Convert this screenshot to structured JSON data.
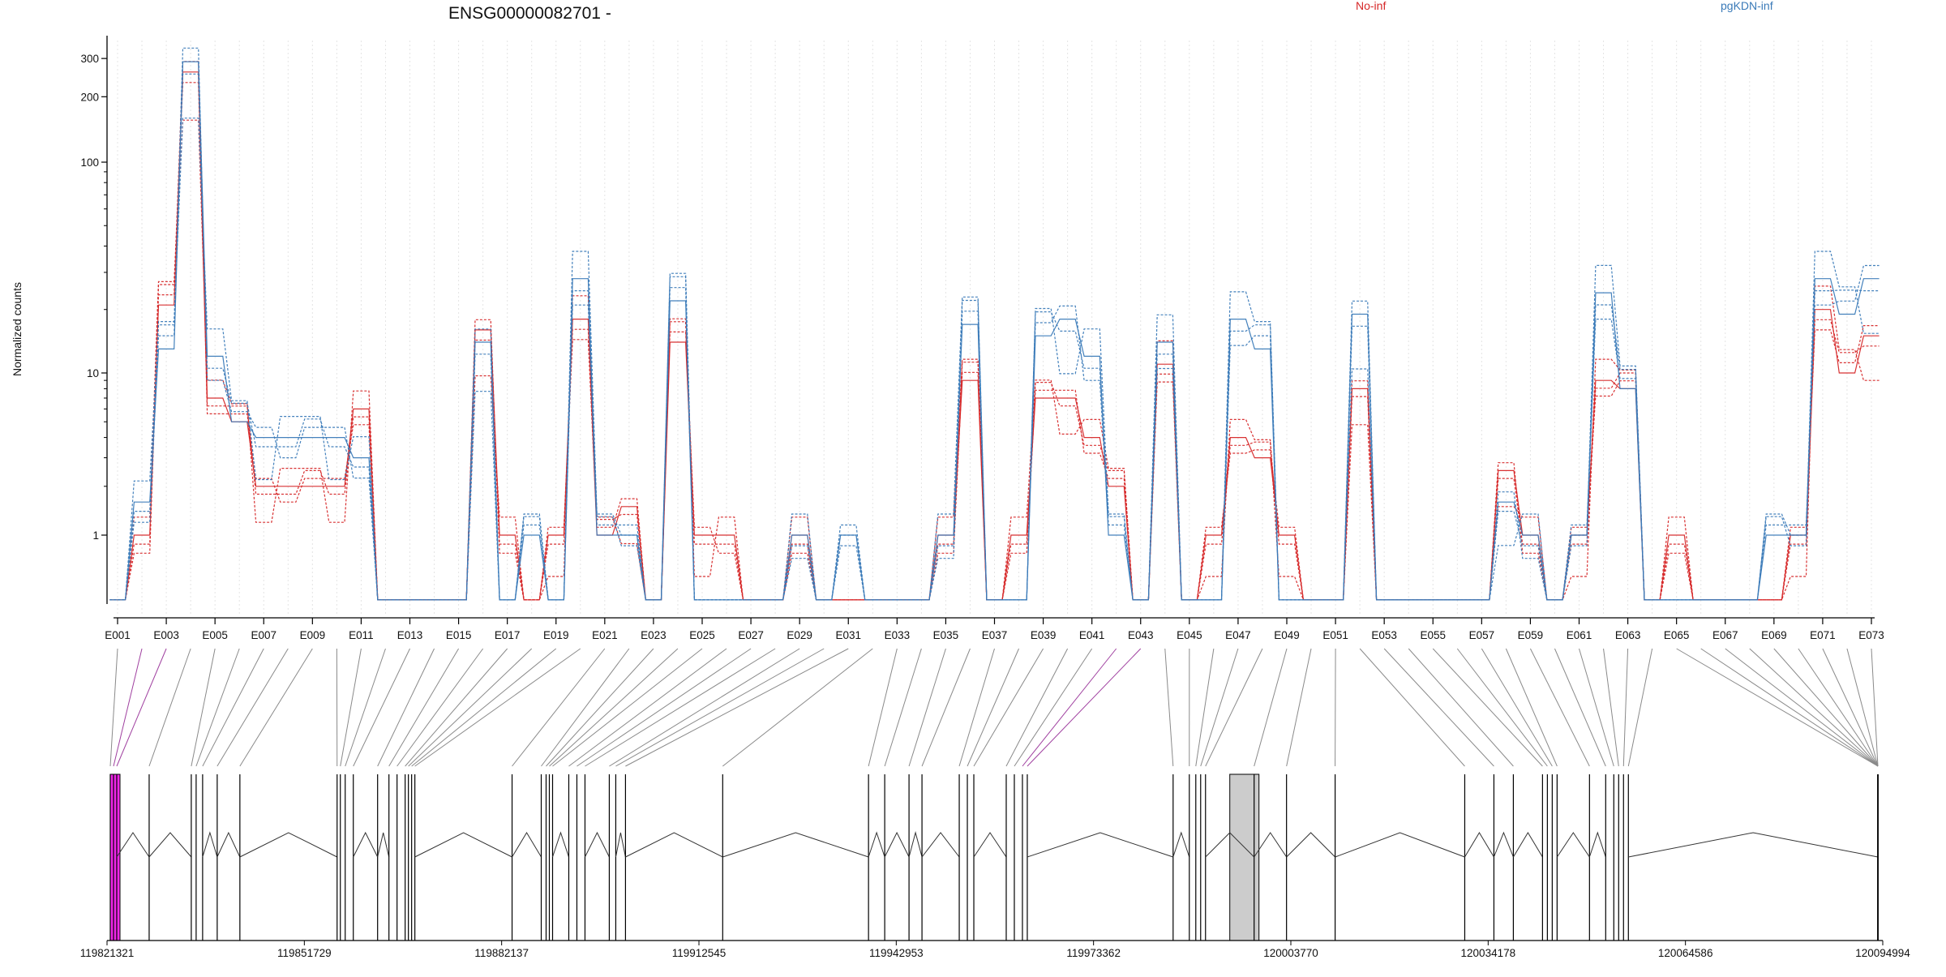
{
  "page": {
    "title": "ENSG00000082701 -",
    "legend": [
      {
        "label": "No-inf",
        "color": "#d62728"
      },
      {
        "label": "pgKDN-inf",
        "color": "#3a7ab8"
      }
    ]
  },
  "chart_data": {
    "type": "line",
    "title": "ENSG00000082701 -",
    "ylabel": "Normalized counts",
    "xlabel": "",
    "y_scale": "log",
    "yticks": [
      1,
      10,
      100,
      200,
      300
    ],
    "ylim": [
      0.45,
      340
    ],
    "grid": "vertical-dashed",
    "legend_placement": "top",
    "exon_labels": [
      "E001",
      "E003",
      "E005",
      "E007",
      "E009",
      "E011",
      "E013",
      "E015",
      "E017",
      "E019",
      "E021",
      "E023",
      "E025",
      "E027",
      "E029",
      "E031",
      "E033",
      "E035",
      "E037",
      "E039",
      "E041",
      "E043",
      "E045",
      "E047",
      "E049",
      "E051",
      "E053",
      "E055",
      "E057",
      "E059",
      "E061",
      "E063",
      "E065",
      "E067",
      "E069",
      "E071",
      "E073"
    ],
    "num_exons": 73,
    "series": [
      {
        "name": "No-inf",
        "color": "#d62728",
        "representative_profile": [
          0.45,
          1,
          21,
          260,
          7,
          5,
          2,
          2,
          2,
          2,
          6,
          0.45,
          0.45,
          0.45,
          0.45,
          16,
          1,
          0.45,
          1,
          18,
          1,
          1.5,
          0.45,
          14,
          1,
          1,
          0.45,
          0.45,
          1,
          0.45,
          0.45,
          0.45,
          0.45,
          0.45,
          1,
          9,
          0.45,
          1,
          7,
          7,
          4,
          2,
          0.45,
          11,
          0.45,
          1,
          4,
          3,
          1,
          0.45,
          0.45,
          8,
          0.45,
          0.45,
          0.45,
          0.45,
          0.45,
          2.5,
          1,
          0.45,
          1,
          9,
          8,
          0.45,
          1,
          0.45,
          0.45,
          0.45,
          0.45,
          1,
          20,
          10,
          15
        ]
      },
      {
        "name": "pgKDN-inf",
        "color": "#3a7ab8",
        "representative_profile": [
          0.45,
          1.6,
          13,
          290,
          12,
          5,
          4,
          4,
          4,
          4,
          3,
          0.45,
          0.45,
          0.45,
          0.45,
          14,
          0.45,
          1,
          0.45,
          28,
          1,
          1,
          0.45,
          22,
          0.45,
          0.45,
          0.45,
          0.45,
          1,
          0.45,
          1,
          0.45,
          0.45,
          0.45,
          1,
          17,
          0.45,
          0.45,
          15,
          18,
          12,
          1,
          0.45,
          14,
          0.45,
          0.45,
          18,
          13,
          0.45,
          0.45,
          0.45,
          19,
          0.45,
          0.45,
          0.45,
          0.45,
          0.45,
          1.6,
          1,
          0.45,
          1,
          24,
          8,
          0.45,
          0.45,
          0.45,
          0.45,
          0.45,
          1,
          1,
          28,
          19,
          28
        ]
      }
    ],
    "genomic_coordinates": [
      "119821321",
      "119851729",
      "119882137",
      "119912545",
      "119942953",
      "119973362",
      "120003770",
      "120034178",
      "120064586",
      "120094994"
    ]
  }
}
